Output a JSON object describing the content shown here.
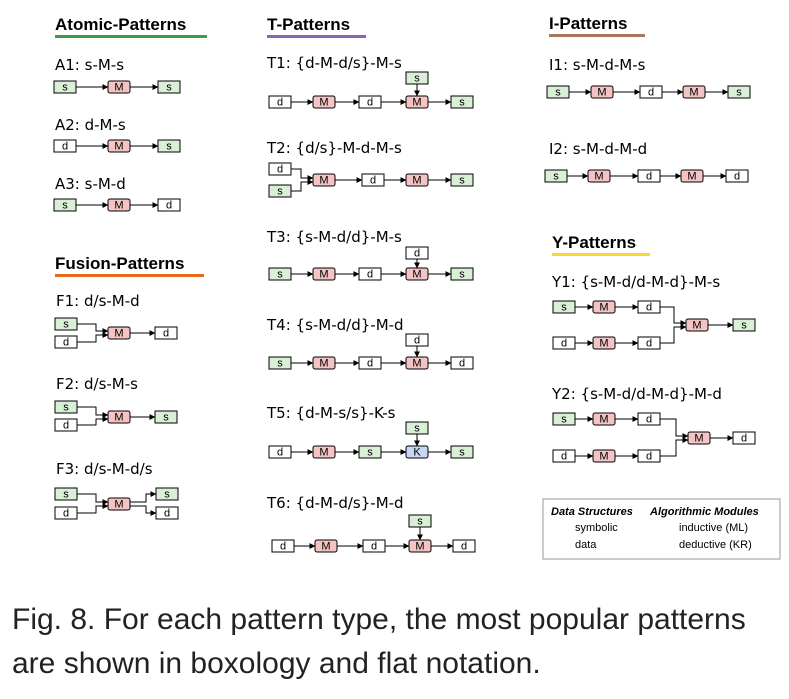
{
  "sections": {
    "atomic": "Atomic-Patterns",
    "fusion": "Fusion-Patterns",
    "t": "T-Patterns",
    "i": "I-Patterns",
    "y": "Y-Patterns"
  },
  "section_colors": {
    "atomic": "#3a9e4a",
    "fusion": "#e86a1c",
    "t": "#8a63b8",
    "i": "#a9765f",
    "y": "#f4d935"
  },
  "box_colors": {
    "symbolic": "#d9efd6",
    "inductive": "#f4c4c4",
    "deductive": "#c9d8f2",
    "data": "#ffffff"
  },
  "patterns": {
    "A1": "A1: s-M-s",
    "A2": "A2: d-M-s",
    "A3": "A3: s-M-d",
    "F1": "F1: d/s-M-d",
    "F2": "F2: d/s-M-s",
    "F3": "F3: d/s-M-d/s",
    "T1": "T1: {d-M-d/s}-M-s",
    "T2": "T2: {d/s}-M-d-M-s",
    "T3": "T3: {s-M-d/d}-M-s",
    "T4": "T4: {s-M-d/d}-M-d",
    "T5": "T5: {d-M-s/s}-K-s",
    "T6": "T6: {d-M-d/s}-M-d",
    "I1": "I1: s-M-d-M-s",
    "I2": "I2: s-M-d-M-d",
    "Y1": "Y1: {s-M-d/d-M-d}-M-s",
    "Y2": "Y2: {s-M-d/d-M-d}-M-d"
  },
  "box_letters": {
    "s": "s",
    "d": "d",
    "M": "M",
    "K": "K"
  },
  "legend": {
    "data_structures": "Data Structures",
    "algorithmic_modules": "Algorithmic Modules",
    "symbolic": "symbolic",
    "data": "data",
    "inductive": "inductive (ML)",
    "deductive": "deductive (KR)"
  },
  "caption": "Fig. 8.  For each pattern type, the most popular patterns are shown in boxology and flat notation."
}
